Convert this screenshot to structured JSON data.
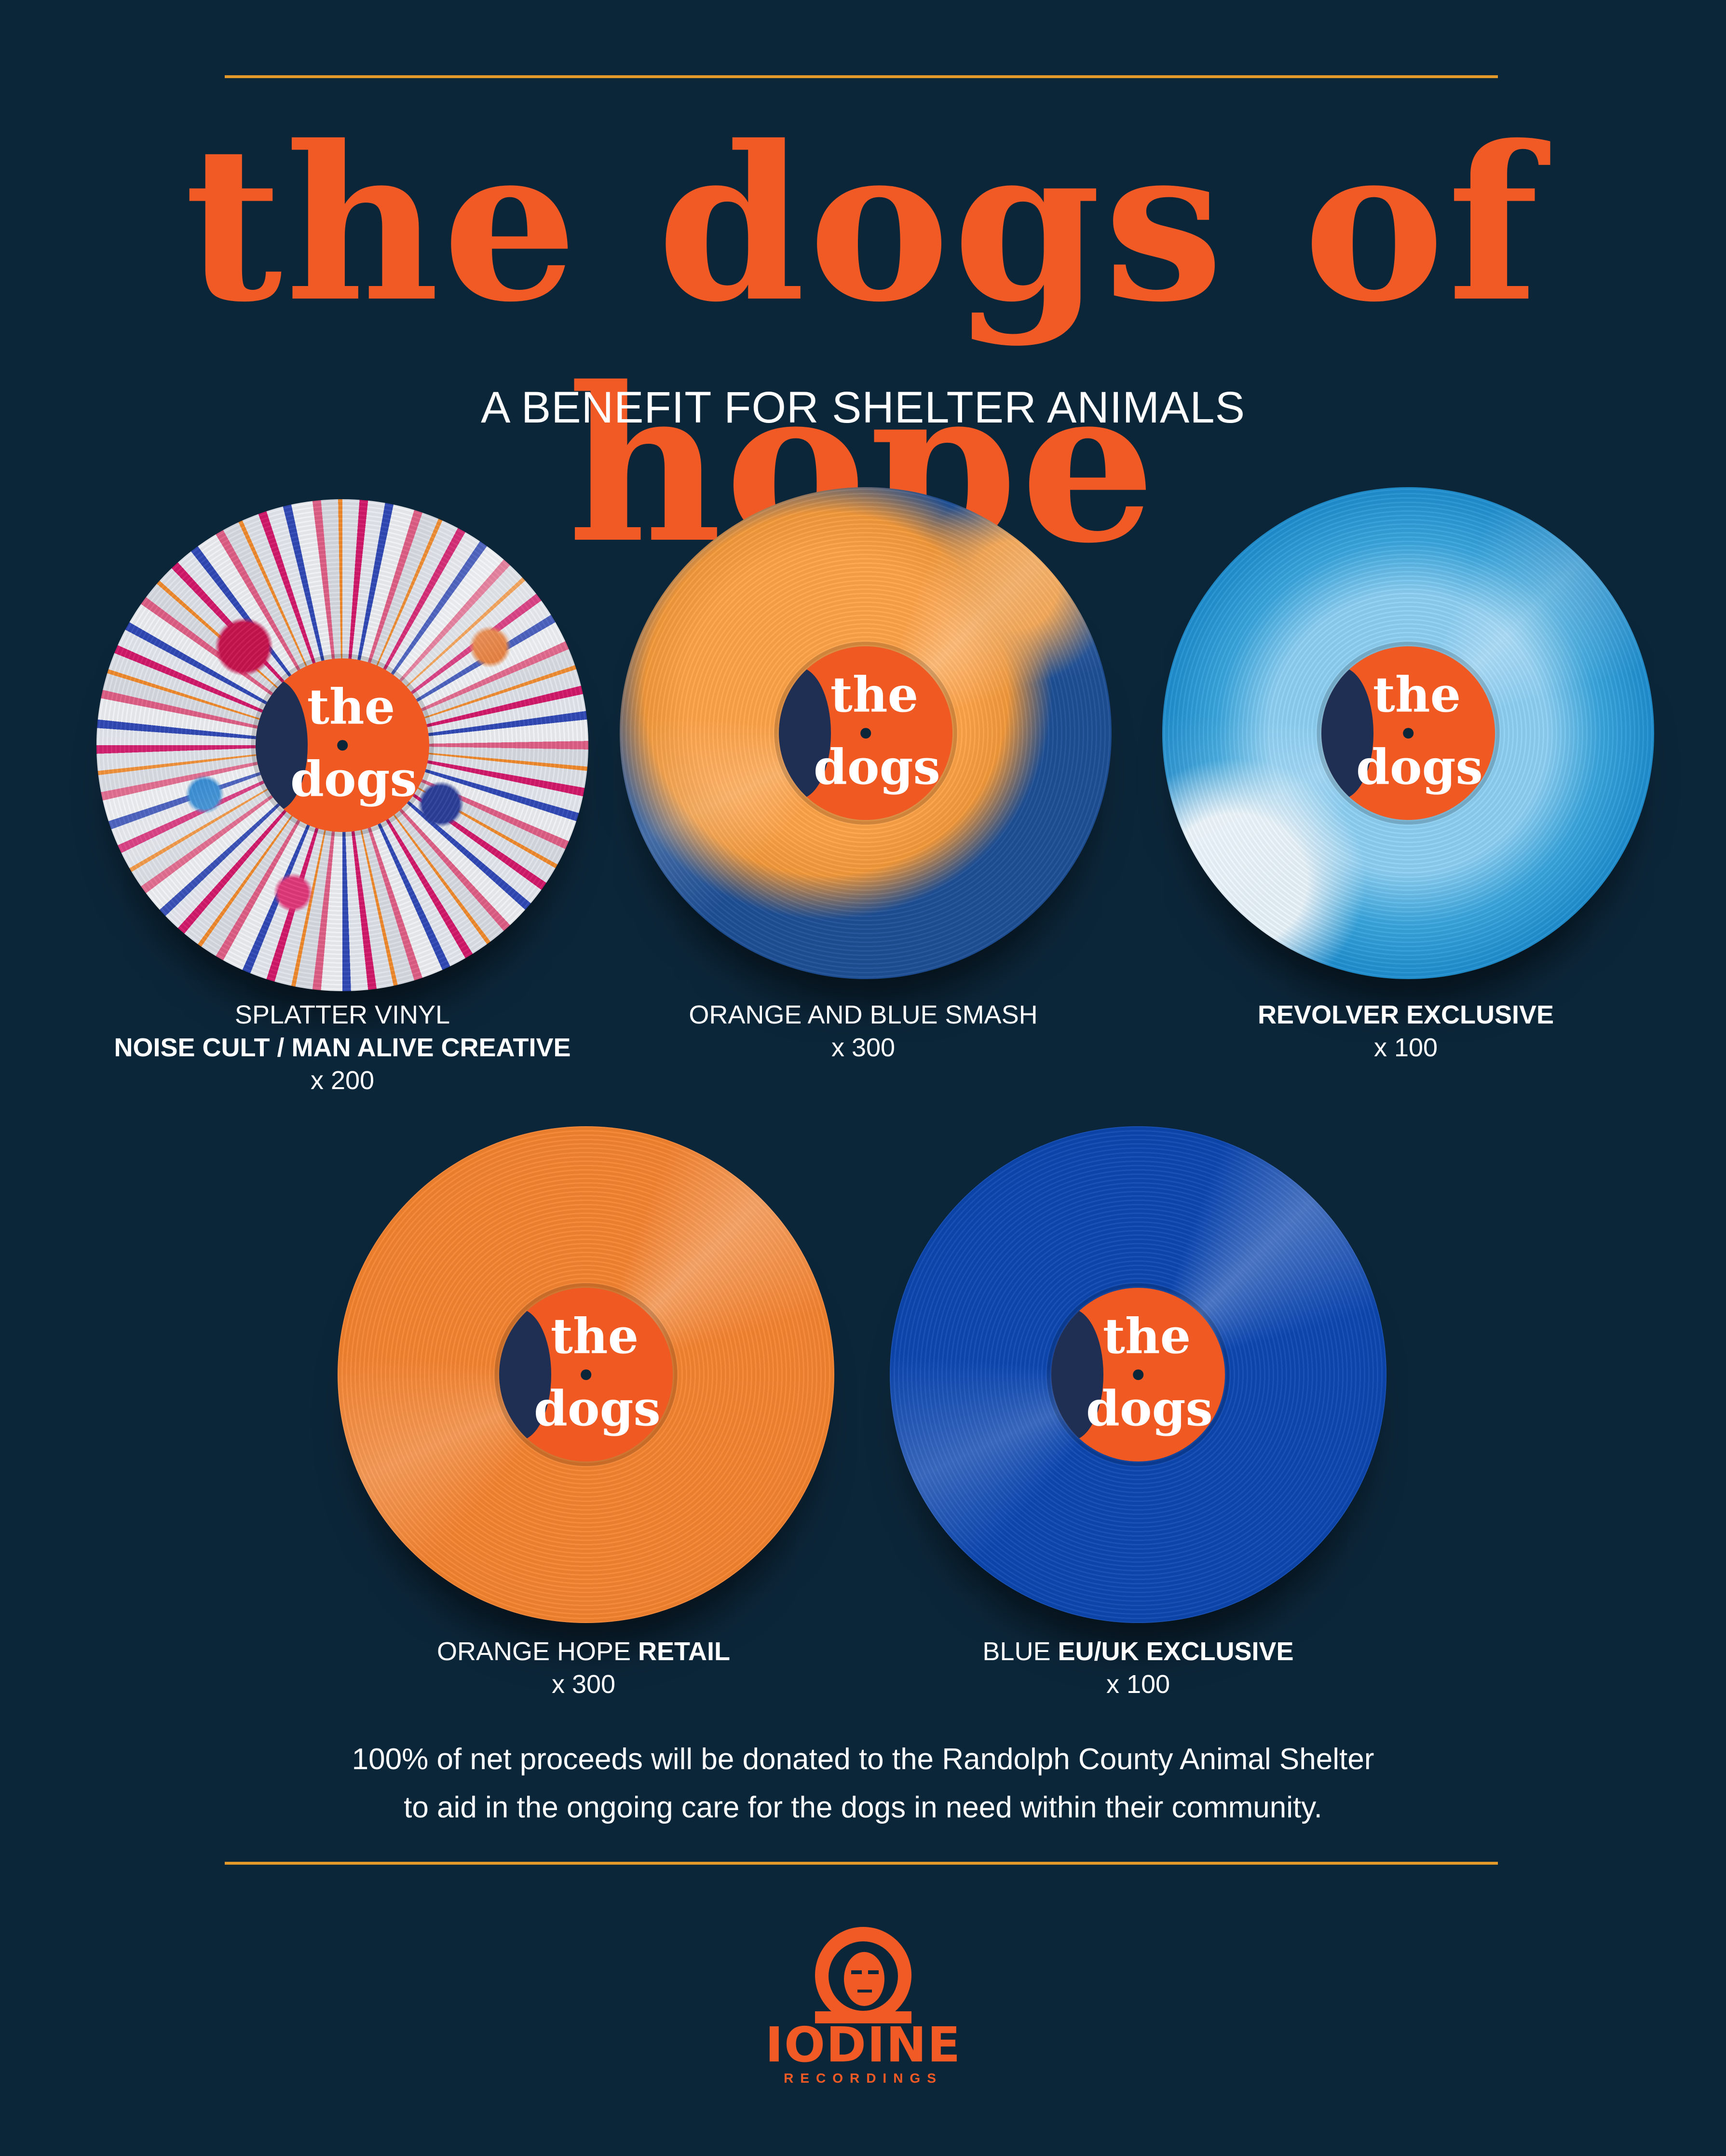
{
  "title": "the dogs of hope",
  "subtitle": "A BENEFIT FOR SHELTER ANIMALS",
  "label": {
    "line1": "the",
    "line2": "dogs"
  },
  "records": [
    {
      "line1": "SPLATTER VINYL",
      "line2_bold": "NOISE CULT / MAN ALIVE CREATIVE",
      "count": "x 200"
    },
    {
      "line1": "ORANGE AND BLUE SMASH",
      "count": "x 300"
    },
    {
      "line1_bold": "REVOLVER EXCLUSIVE",
      "count": "x 100"
    },
    {
      "line1_pre": "ORANGE HOPE ",
      "line1_bold": "RETAIL",
      "count": "x 300"
    },
    {
      "line1_pre": "BLUE ",
      "line1_bold": "EU/UK EXCLUSIVE",
      "count": "x 100"
    }
  ],
  "donation": {
    "line1": "100% of net proceeds will be donated to the Randolph County Animal Shelter",
    "line2": "to aid in the ongoing care for the dogs in need within their community."
  },
  "logo": {
    "name": "IODINE",
    "sub": "RECORDINGS",
    "icon": "astronaut-icon"
  },
  "colors": {
    "background": "#0c2639",
    "accent": "#f15a24",
    "rule": "#e49a2a"
  }
}
